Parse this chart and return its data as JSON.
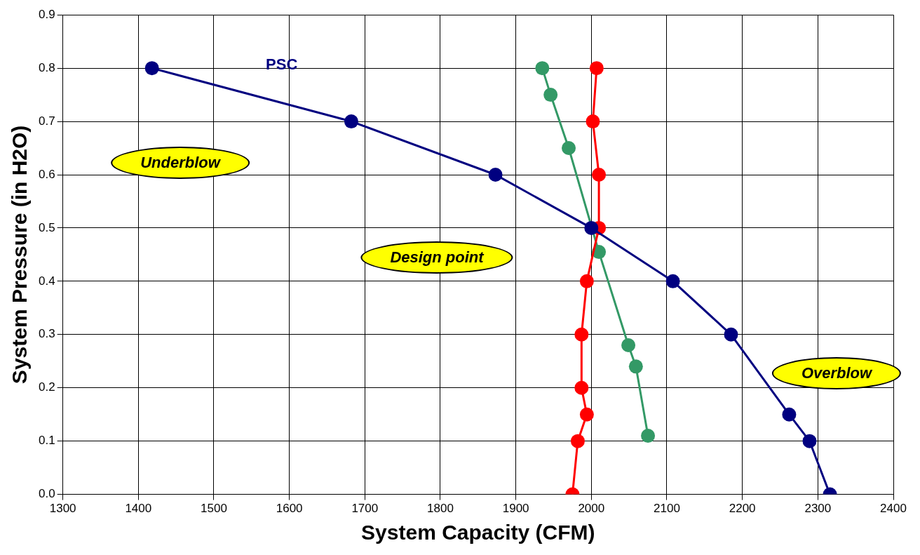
{
  "chart_data": {
    "type": "line",
    "xlabel": "System Capacity (CFM)",
    "ylabel": "System Pressure (in H2O)",
    "xlim": [
      1300,
      2400
    ],
    "xticks": [
      1300,
      1400,
      1500,
      1600,
      1700,
      1800,
      1900,
      2000,
      2100,
      2200,
      2300,
      2400
    ],
    "ylim": [
      0,
      0.9
    ],
    "yticks": [
      {
        "value": 0,
        "label": "0.0"
      },
      0.1,
      0.2,
      0.3,
      0.4,
      0.5,
      0.6,
      0.7,
      0.8,
      0.9
    ],
    "grid": true,
    "legend": false,
    "marker": "circle",
    "line_style": "solid",
    "series": [
      {
        "name": "PSC",
        "color": "#000080",
        "x": [
          1418,
          1682,
          1873,
          2000,
          2108,
          2185,
          2262,
          2289,
          2316
        ],
        "values": [
          0.8,
          0.7,
          0.6,
          0.5,
          0.4,
          0.3,
          0.15,
          0.1,
          0
        ]
      },
      {
        "color": "#ff0000",
        "x": [
          2007,
          2002,
          2010,
          2010,
          1994,
          1987,
          1987,
          1994,
          1982,
          1975
        ],
        "values": [
          0.8,
          0.7,
          0.6,
          0.5,
          0.4,
          0.3,
          0.2,
          0.15,
          0.1,
          0
        ]
      },
      {
        "color": "#339966",
        "x": [
          1935,
          1946,
          1970,
          2010,
          2049,
          2059,
          2075
        ],
        "values": [
          0.8,
          0.75,
          0.65,
          0.455,
          0.28,
          0.24,
          0.11
        ]
      }
    ],
    "annotations": [
      "Underblow",
      "Design point",
      "Overblow"
    ]
  }
}
